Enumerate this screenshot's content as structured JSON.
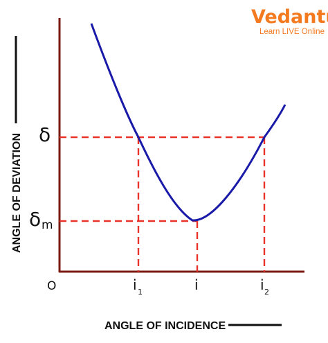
{
  "logo": {
    "brand": "Vedantu",
    "tagline": "Learn LIVE Online"
  },
  "axes": {
    "x_title": "ANGLE OF INCIDENCE",
    "y_title": "ANGLE OF DEVIATION",
    "origin": "O"
  },
  "y_marks": {
    "delta": "δ",
    "delta_min": "δ",
    "delta_min_sub": "m"
  },
  "x_marks": {
    "i1": "i",
    "i1_sub": "1",
    "i": "i",
    "i2": "i",
    "i2_sub": "2"
  },
  "colors": {
    "axis": "#7a1a10",
    "curve": "#1a1aa8",
    "dashed": "#e8322a",
    "logo": "#f47a20"
  }
}
